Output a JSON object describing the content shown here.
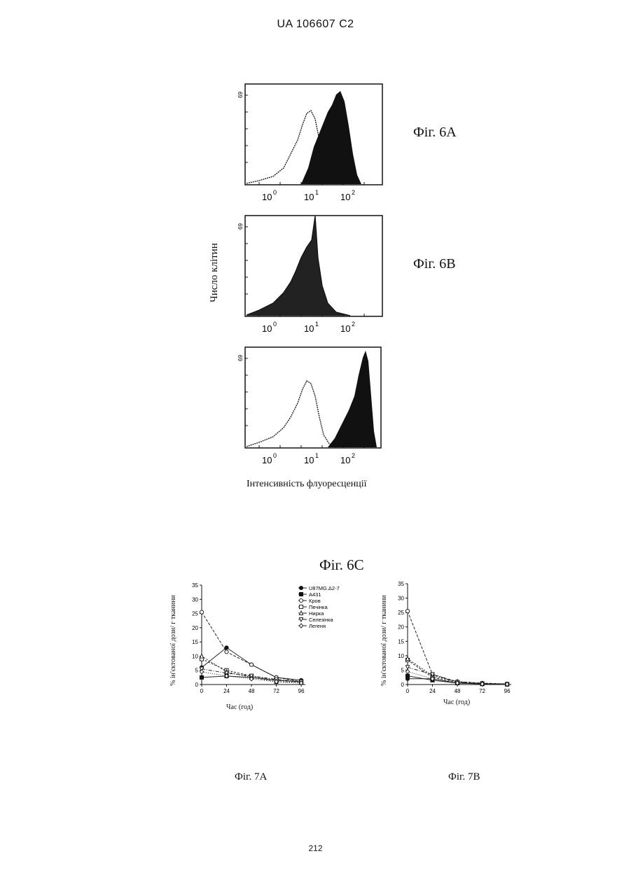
{
  "header": "UA   106607   C2",
  "page_number": "212",
  "fig6": {
    "y_axis_label": "Число клітин",
    "x_axis_label": "Інтенсивність флуоресценції",
    "panels": [
      {
        "label": "Фіг. 6A",
        "ymax_label": "69",
        "x_ticks": [
          "10",
          "10",
          "10"
        ],
        "x_exp": [
          "0",
          "1",
          "2"
        ]
      },
      {
        "label": "Фіг. 6B",
        "ymax_label": "69",
        "x_ticks": [
          "10",
          "10",
          "10"
        ],
        "x_exp": [
          "0",
          "1",
          "2"
        ]
      },
      {
        "label": "Фіг. 6C",
        "ymax_label": "69",
        "x_ticks": [
          "10",
          "10",
          "10"
        ],
        "x_exp": [
          "0",
          "1",
          "2"
        ]
      }
    ]
  },
  "chart_data": [
    {
      "type": "line",
      "title": "Фіг. 7A",
      "xlabel": "Час (год)",
      "ylabel": "% ін'єктованої дози/ г тканини",
      "x": [
        0,
        24,
        48,
        72,
        96
      ],
      "xticks": [
        "0",
        "24",
        "48",
        "72",
        "96"
      ],
      "yticks": [
        "0",
        "5",
        "10",
        "15",
        "20",
        "25",
        "30",
        "35"
      ],
      "ylim": [
        0,
        35
      ],
      "legend_placement": "top-right",
      "series": [
        {
          "name": "U87MG.Δ2-7",
          "marker": "filled-circle",
          "values": [
            6,
            13,
            7,
            2.5,
            1.5
          ]
        },
        {
          "name": "A431",
          "marker": "filled-square",
          "values": [
            2.5,
            3,
            2.5,
            1.5,
            1
          ]
        },
        {
          "name": "Кров",
          "marker": "open-circle",
          "values": [
            25.5,
            11.5,
            7,
            2.5,
            1
          ]
        },
        {
          "name": "Печінка",
          "marker": "open-square",
          "values": [
            9,
            5,
            3,
            1.5,
            1
          ]
        },
        {
          "name": "Нирка",
          "marker": "open-triangle-up",
          "values": [
            10,
            4.5,
            2.5,
            1,
            0.8
          ]
        },
        {
          "name": "Селезінка",
          "marker": "open-triangle-down",
          "values": [
            5.5,
            4,
            3,
            1.8,
            1
          ]
        },
        {
          "name": "Легеня",
          "marker": "open-diamond",
          "values": [
            4.5,
            3,
            2,
            1,
            0.5
          ]
        }
      ]
    },
    {
      "type": "line",
      "title": "Фіг. 7B",
      "xlabel": "Час (год)",
      "ylabel": "% ін'єктованої дози/ г тканини",
      "x": [
        0,
        24,
        48,
        72,
        96
      ],
      "xticks": [
        "0",
        "24",
        "48",
        "72",
        "96"
      ],
      "yticks": [
        "0",
        "5",
        "10",
        "15",
        "20",
        "25",
        "30",
        "35"
      ],
      "ylim": [
        0,
        35
      ],
      "series": [
        {
          "marker": "filled-circle",
          "values": [
            2,
            2,
            0.5,
            0.3,
            0.2
          ]
        },
        {
          "marker": "filled-square",
          "values": [
            3,
            1.5,
            0.5,
            0.2,
            0.1
          ]
        },
        {
          "marker": "open-circle",
          "values": [
            25.5,
            3.5,
            1,
            0.5,
            0.2
          ]
        },
        {
          "marker": "open-square",
          "values": [
            8.5,
            2.5,
            0.8,
            0.3,
            0.1
          ]
        },
        {
          "marker": "open-triangle-up",
          "values": [
            9,
            3,
            1,
            0.3,
            0.1
          ]
        },
        {
          "marker": "open-triangle-down",
          "values": [
            6,
            3.5,
            0.8,
            0.3,
            0.1
          ]
        },
        {
          "marker": "open-diamond",
          "values": [
            4.5,
            2,
            0.5,
            0.2,
            0.1
          ]
        }
      ]
    }
  ]
}
